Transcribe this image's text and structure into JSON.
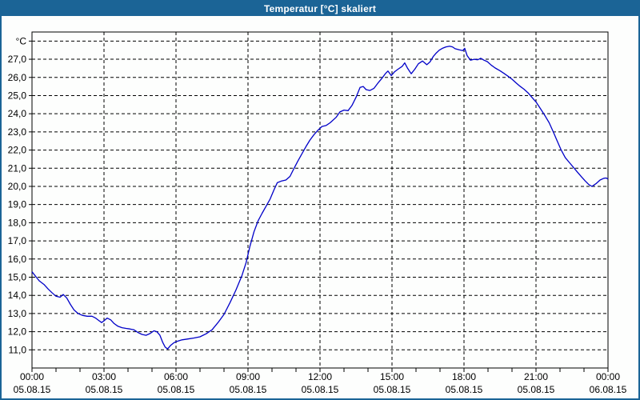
{
  "title": "Temperatur [°C] skaliert",
  "colors": {
    "titlebar_bg": "#1b6496",
    "titlebar_text": "#ffffff",
    "window_border": "#1b6496",
    "background": "#fdfefd",
    "plot_border": "#000000",
    "grid": "#000000",
    "line": "#0000c8"
  },
  "chart_data": {
    "type": "line",
    "title": "Temperatur [°C] skaliert",
    "ylabel": "°C",
    "unit_label": "°C",
    "grid": "dashed",
    "legend": "none",
    "xlim_hours": [
      0,
      24
    ],
    "ylim": [
      10,
      28.5
    ],
    "minor_x_tick_every_hours": 1,
    "major_x_tick_every_hours": 3,
    "y_ticks": [
      {
        "value": 28,
        "label": "°C"
      },
      {
        "value": 27,
        "label": "27,0"
      },
      {
        "value": 26,
        "label": "26,0"
      },
      {
        "value": 25,
        "label": "25,0"
      },
      {
        "value": 24,
        "label": "24,0"
      },
      {
        "value": 23,
        "label": "23,0"
      },
      {
        "value": 22,
        "label": "22,0"
      },
      {
        "value": 21,
        "label": "21,0"
      },
      {
        "value": 20,
        "label": "20,0"
      },
      {
        "value": 19,
        "label": "19,0"
      },
      {
        "value": 18,
        "label": "18,0"
      },
      {
        "value": 17,
        "label": "17,0"
      },
      {
        "value": 16,
        "label": "16,0"
      },
      {
        "value": 15,
        "label": "15,0"
      },
      {
        "value": 14,
        "label": "14,0"
      },
      {
        "value": 13,
        "label": "13,0"
      },
      {
        "value": 12,
        "label": "12,0"
      },
      {
        "value": 11,
        "label": "11,0"
      }
    ],
    "x_ticks": [
      {
        "hour": 0,
        "time": "00:00",
        "date": "05.08.15"
      },
      {
        "hour": 3,
        "time": "03:00",
        "date": "05.08.15"
      },
      {
        "hour": 6,
        "time": "06:00",
        "date": "05.08.15"
      },
      {
        "hour": 9,
        "time": "09:00",
        "date": "05.08.15"
      },
      {
        "hour": 12,
        "time": "12:00",
        "date": "05.08.15"
      },
      {
        "hour": 15,
        "time": "15:00",
        "date": "05.08.15"
      },
      {
        "hour": 18,
        "time": "18:00",
        "date": "05.08.15"
      },
      {
        "hour": 21,
        "time": "21:00",
        "date": "05.08.15"
      },
      {
        "hour": 24,
        "time": "00:00",
        "date": "06.08.15"
      }
    ],
    "series": [
      {
        "name": "Temperatur",
        "points": [
          [
            0.0,
            15.3
          ],
          [
            0.15,
            15.05
          ],
          [
            0.3,
            14.8
          ],
          [
            0.5,
            14.6
          ],
          [
            0.67,
            14.35
          ],
          [
            0.83,
            14.15
          ],
          [
            1.0,
            13.95
          ],
          [
            1.17,
            13.9
          ],
          [
            1.3,
            14.05
          ],
          [
            1.45,
            13.85
          ],
          [
            1.6,
            13.5
          ],
          [
            1.75,
            13.2
          ],
          [
            1.92,
            13.0
          ],
          [
            2.1,
            12.9
          ],
          [
            2.3,
            12.85
          ],
          [
            2.5,
            12.85
          ],
          [
            2.65,
            12.75
          ],
          [
            2.8,
            12.6
          ],
          [
            2.9,
            12.5
          ],
          [
            3.0,
            12.6
          ],
          [
            3.13,
            12.75
          ],
          [
            3.28,
            12.65
          ],
          [
            3.42,
            12.45
          ],
          [
            3.58,
            12.3
          ],
          [
            3.75,
            12.22
          ],
          [
            3.92,
            12.18
          ],
          [
            4.08,
            12.15
          ],
          [
            4.25,
            12.1
          ],
          [
            4.42,
            11.95
          ],
          [
            4.58,
            11.85
          ],
          [
            4.75,
            11.8
          ],
          [
            4.92,
            11.9
          ],
          [
            5.08,
            12.05
          ],
          [
            5.2,
            12.0
          ],
          [
            5.33,
            11.8
          ],
          [
            5.45,
            11.4
          ],
          [
            5.55,
            11.15
          ],
          [
            5.65,
            11.05
          ],
          [
            5.78,
            11.25
          ],
          [
            5.9,
            11.38
          ],
          [
            6.0,
            11.45
          ],
          [
            6.25,
            11.55
          ],
          [
            6.5,
            11.6
          ],
          [
            6.75,
            11.65
          ],
          [
            7.0,
            11.72
          ],
          [
            7.25,
            11.88
          ],
          [
            7.5,
            12.1
          ],
          [
            7.75,
            12.5
          ],
          [
            8.0,
            12.95
          ],
          [
            8.25,
            13.6
          ],
          [
            8.5,
            14.3
          ],
          [
            8.75,
            15.1
          ],
          [
            8.92,
            15.8
          ],
          [
            9.08,
            16.7
          ],
          [
            9.25,
            17.5
          ],
          [
            9.42,
            18.1
          ],
          [
            9.58,
            18.5
          ],
          [
            9.75,
            18.9
          ],
          [
            9.92,
            19.3
          ],
          [
            10.08,
            19.8
          ],
          [
            10.22,
            20.2
          ],
          [
            10.4,
            20.3
          ],
          [
            10.58,
            20.35
          ],
          [
            10.75,
            20.55
          ],
          [
            10.92,
            21.0
          ],
          [
            11.08,
            21.4
          ],
          [
            11.25,
            21.8
          ],
          [
            11.42,
            22.2
          ],
          [
            11.58,
            22.55
          ],
          [
            11.75,
            22.85
          ],
          [
            11.92,
            23.1
          ],
          [
            12.08,
            23.3
          ],
          [
            12.25,
            23.35
          ],
          [
            12.42,
            23.5
          ],
          [
            12.67,
            23.8
          ],
          [
            12.83,
            24.1
          ],
          [
            13.0,
            24.2
          ],
          [
            13.17,
            24.17
          ],
          [
            13.33,
            24.45
          ],
          [
            13.5,
            24.9
          ],
          [
            13.67,
            25.45
          ],
          [
            13.8,
            25.5
          ],
          [
            13.92,
            25.33
          ],
          [
            14.08,
            25.28
          ],
          [
            14.25,
            25.4
          ],
          [
            14.42,
            25.7
          ],
          [
            14.58,
            25.95
          ],
          [
            14.72,
            26.2
          ],
          [
            14.83,
            26.35
          ],
          [
            14.97,
            26.1
          ],
          [
            15.1,
            26.3
          ],
          [
            15.25,
            26.45
          ],
          [
            15.42,
            26.6
          ],
          [
            15.53,
            26.8
          ],
          [
            15.65,
            26.5
          ],
          [
            15.8,
            26.2
          ],
          [
            15.95,
            26.45
          ],
          [
            16.1,
            26.75
          ],
          [
            16.27,
            26.9
          ],
          [
            16.45,
            26.7
          ],
          [
            16.58,
            26.85
          ],
          [
            16.72,
            27.15
          ],
          [
            16.85,
            27.35
          ],
          [
            16.97,
            27.5
          ],
          [
            17.1,
            27.6
          ],
          [
            17.25,
            27.68
          ],
          [
            17.4,
            27.72
          ],
          [
            17.52,
            27.68
          ],
          [
            17.63,
            27.58
          ],
          [
            17.8,
            27.52
          ],
          [
            17.95,
            27.48
          ],
          [
            18.03,
            27.6
          ],
          [
            18.13,
            27.2
          ],
          [
            18.27,
            26.95
          ],
          [
            18.42,
            27.0
          ],
          [
            18.57,
            26.97
          ],
          [
            18.7,
            27.05
          ],
          [
            18.83,
            26.95
          ],
          [
            18.97,
            26.87
          ],
          [
            19.13,
            26.68
          ],
          [
            19.3,
            26.52
          ],
          [
            19.5,
            26.37
          ],
          [
            19.67,
            26.22
          ],
          [
            19.83,
            26.07
          ],
          [
            20.0,
            25.9
          ],
          [
            20.17,
            25.7
          ],
          [
            20.33,
            25.52
          ],
          [
            20.5,
            25.35
          ],
          [
            20.67,
            25.15
          ],
          [
            20.83,
            24.9
          ],
          [
            21.0,
            24.65
          ],
          [
            21.2,
            24.25
          ],
          [
            21.38,
            23.88
          ],
          [
            21.55,
            23.5
          ],
          [
            21.72,
            23.0
          ],
          [
            21.9,
            22.45
          ],
          [
            22.05,
            22.0
          ],
          [
            22.22,
            21.58
          ],
          [
            22.4,
            21.3
          ],
          [
            22.57,
            21.03
          ],
          [
            22.73,
            20.78
          ],
          [
            22.9,
            20.52
          ],
          [
            23.05,
            20.3
          ],
          [
            23.2,
            20.1
          ],
          [
            23.33,
            20.0
          ],
          [
            23.5,
            20.15
          ],
          [
            23.67,
            20.35
          ],
          [
            23.83,
            20.45
          ],
          [
            23.93,
            20.46
          ],
          [
            24.0,
            20.4
          ]
        ]
      }
    ]
  }
}
